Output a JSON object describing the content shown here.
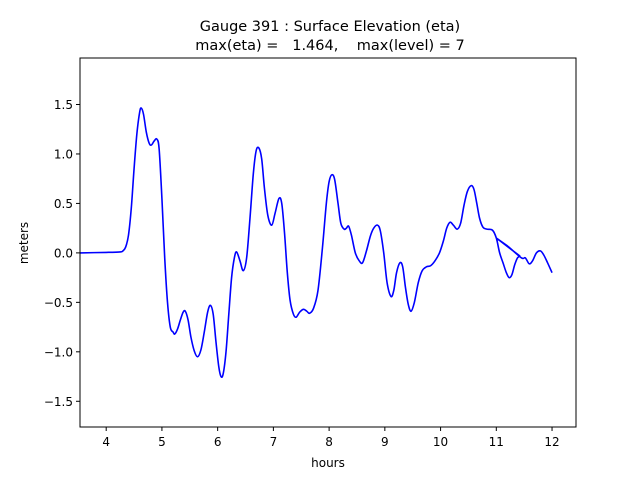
{
  "chart_data": {
    "type": "line",
    "title": "Gauge 391 : Surface Elevation (eta)",
    "subtitle": "max(eta) =   1.464,    max(level) = 7",
    "xlabel": "hours",
    "ylabel": "meters",
    "xlim": [
      3.53,
      12.43
    ],
    "ylim": [
      -1.76,
      1.97
    ],
    "xticks": [
      4,
      5,
      6,
      7,
      8,
      9,
      10,
      11,
      12
    ],
    "xtick_labels": [
      "4",
      "5",
      "6",
      "7",
      "8",
      "9",
      "10",
      "11",
      "12"
    ],
    "yticks": [
      -1.5,
      -1.0,
      -0.5,
      0.0,
      0.5,
      1.0,
      1.5
    ],
    "ytick_labels": [
      "−1.5",
      "−1.0",
      "−0.5",
      "0.0",
      "0.5",
      "1.0",
      "1.5"
    ],
    "grid": false,
    "series": [
      {
        "name": "eta",
        "color": "#0000ff",
        "x": [
          3.53,
          4.0,
          4.25,
          4.3,
          4.35,
          4.4,
          4.45,
          4.5,
          4.55,
          4.6,
          4.63,
          4.67,
          4.72,
          4.77,
          4.81,
          4.86,
          4.91,
          4.95,
          5.0,
          5.05,
          5.1,
          5.15,
          5.2,
          5.23,
          5.28,
          5.33,
          5.38,
          5.42,
          5.47,
          5.52,
          5.58,
          5.64,
          5.7,
          5.76,
          5.82,
          5.87,
          5.92,
          5.97,
          6.02,
          6.06,
          6.1,
          6.15,
          6.2,
          6.25,
          6.3,
          6.34,
          6.4,
          6.46,
          6.52,
          6.58,
          6.64,
          6.69,
          6.74,
          6.79,
          6.84,
          6.9,
          6.97,
          7.03,
          7.1,
          7.15,
          7.2,
          7.25,
          7.3,
          7.36,
          7.41,
          7.47,
          7.54,
          7.6,
          7.65,
          7.72,
          7.8,
          7.88,
          7.95,
          8.0,
          8.05,
          8.1,
          8.16,
          8.21,
          8.27,
          8.31,
          8.35,
          8.4,
          8.47,
          8.54,
          8.6,
          8.67,
          8.74,
          8.8,
          8.87,
          8.92,
          8.98,
          9.04,
          9.11,
          9.16,
          9.21,
          9.27,
          9.32,
          9.37,
          9.42,
          9.47,
          9.53,
          9.6,
          9.67,
          9.75,
          9.82,
          9.9,
          9.98,
          10.05,
          10.11,
          10.17,
          10.23,
          10.3,
          10.36,
          10.42,
          10.48,
          10.55,
          10.6,
          10.65,
          10.7,
          10.76,
          10.83,
          10.93,
          11.0,
          11.06,
          11.12,
          11.18,
          11.23,
          11.28,
          11.33,
          11.38,
          11.42,
          11.0,
          11.2,
          11.45,
          11.52,
          11.59,
          11.65,
          11.72,
          11.79,
          11.85,
          11.92,
          12.0
        ],
        "y": [
          0.0,
          0.005,
          0.01,
          0.02,
          0.06,
          0.18,
          0.45,
          0.85,
          1.2,
          1.42,
          1.464,
          1.4,
          1.22,
          1.11,
          1.09,
          1.13,
          1.15,
          1.05,
          0.55,
          -0.05,
          -0.5,
          -0.75,
          -0.8,
          -0.82,
          -0.77,
          -0.68,
          -0.6,
          -0.59,
          -0.68,
          -0.85,
          -0.99,
          -1.05,
          -0.98,
          -0.8,
          -0.6,
          -0.53,
          -0.62,
          -0.9,
          -1.15,
          -1.25,
          -1.22,
          -1.0,
          -0.62,
          -0.25,
          -0.05,
          0.01,
          -0.08,
          -0.18,
          -0.05,
          0.35,
          0.8,
          1.03,
          1.06,
          0.95,
          0.65,
          0.38,
          0.28,
          0.4,
          0.55,
          0.5,
          0.2,
          -0.2,
          -0.48,
          -0.62,
          -0.65,
          -0.6,
          -0.57,
          -0.59,
          -0.61,
          -0.56,
          -0.38,
          0.05,
          0.5,
          0.72,
          0.79,
          0.74,
          0.5,
          0.3,
          0.24,
          0.25,
          0.27,
          0.18,
          0.0,
          -0.08,
          -0.1,
          0.02,
          0.17,
          0.25,
          0.28,
          0.22,
          0.0,
          -0.3,
          -0.44,
          -0.38,
          -0.2,
          -0.1,
          -0.14,
          -0.35,
          -0.52,
          -0.59,
          -0.5,
          -0.3,
          -0.18,
          -0.14,
          -0.13,
          -0.08,
          0.0,
          0.12,
          0.25,
          0.31,
          0.28,
          0.24,
          0.3,
          0.48,
          0.62,
          0.68,
          0.64,
          0.5,
          0.35,
          0.26,
          0.24,
          0.23,
          0.15,
          0.0,
          -0.1,
          -0.2,
          -0.25,
          -0.22,
          -0.12,
          -0.05,
          -0.03,
          0.15,
          0.07,
          -0.05,
          -0.05,
          -0.11,
          -0.08,
          0.0,
          0.02,
          -0.02,
          -0.1,
          -0.2
        ]
      }
    ]
  }
}
